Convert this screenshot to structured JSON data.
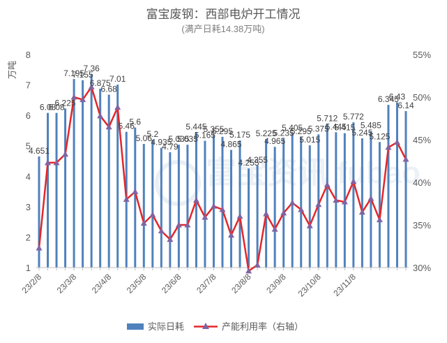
{
  "chart_data": {
    "type": "bar+line",
    "title": "富宝废钢：西部电炉开工情况",
    "subtitle": "(满产日耗14.38万吨)",
    "ylabel_left": "万吨",
    "ylim_left": [
      1,
      8
    ],
    "ylim_right": [
      30,
      55
    ],
    "left_ticks": [
      "1",
      "2",
      "3",
      "4",
      "5",
      "6",
      "7",
      "8"
    ],
    "right_ticks": [
      "30%",
      "35%",
      "40%",
      "45%",
      "50%",
      "55%"
    ],
    "x_tick_labels": [
      "23/2/8",
      "23/3/8",
      "23/4/8",
      "23/5/8",
      "23/6/8",
      "23/7/8",
      "23/8/8",
      "23/9/8",
      "23/10/8",
      "23/11/8"
    ],
    "x_tick_indices": [
      0,
      4,
      8,
      12,
      16,
      20,
      24,
      28,
      32,
      36
    ],
    "watermark": "富宝资讯 fubao",
    "legend": [
      "实际日耗",
      "产能利用率（右轴）"
    ],
    "colors": {
      "bar": "#4f81bd",
      "line": "#e3262a",
      "marker": "#8064a2"
    },
    "series": [
      {
        "name": "实际日耗",
        "axis": "left",
        "values": [
          4.651,
          6.08,
          6.08,
          6.225,
          7.195,
          7.155,
          7.36,
          6.875,
          6.68,
          7.01,
          5.46,
          5.6,
          5.06,
          5.2,
          4.935,
          4.79,
          5.035,
          5.035,
          5.445,
          5.165,
          5.355,
          5.295,
          4.865,
          5.175,
          4.255,
          4.355,
          5.225,
          4.965,
          5.235,
          5.405,
          5.295,
          5.015,
          5.375,
          5.712,
          5.445,
          5.415,
          5.772,
          5.245,
          5.485,
          5.125,
          6.345,
          6.43,
          6.14
        ],
        "labels": [
          "4.651",
          "6.08",
          "6.08",
          "6.225",
          "7.195",
          "7.155",
          "7.36",
          "6.875",
          "6.68",
          "7.01",
          "5.46",
          "5.6",
          "5.06",
          "5.2",
          "4.935",
          "4.79",
          "5.035",
          "5.035",
          "5.445",
          "5.165",
          "5.355",
          "5.295",
          "4.865",
          "5.175",
          "4.255",
          "4.355",
          "5.225",
          "4.965",
          "5.235",
          "5.405",
          "5.295",
          "5.015",
          "5.375",
          "5.712",
          "5.445",
          "5.415",
          "5.772",
          "5.245",
          "5.485",
          "5.125",
          "6.345",
          "6.43",
          "6.14"
        ]
      },
      {
        "name": "产能利用率（右轴）",
        "axis": "right",
        "values": [
          32.3,
          42.3,
          42.3,
          43.3,
          50.0,
          49.7,
          51.2,
          47.8,
          46.5,
          48.8,
          38.0,
          38.9,
          35.2,
          36.2,
          34.3,
          33.3,
          35.0,
          35.0,
          37.9,
          35.9,
          37.2,
          36.8,
          33.8,
          36.0,
          29.6,
          30.3,
          36.3,
          34.5,
          36.4,
          37.6,
          36.8,
          34.9,
          37.4,
          39.7,
          37.9,
          37.7,
          40.1,
          36.5,
          38.1,
          35.6,
          44.1,
          44.7,
          42.7
        ]
      }
    ]
  }
}
